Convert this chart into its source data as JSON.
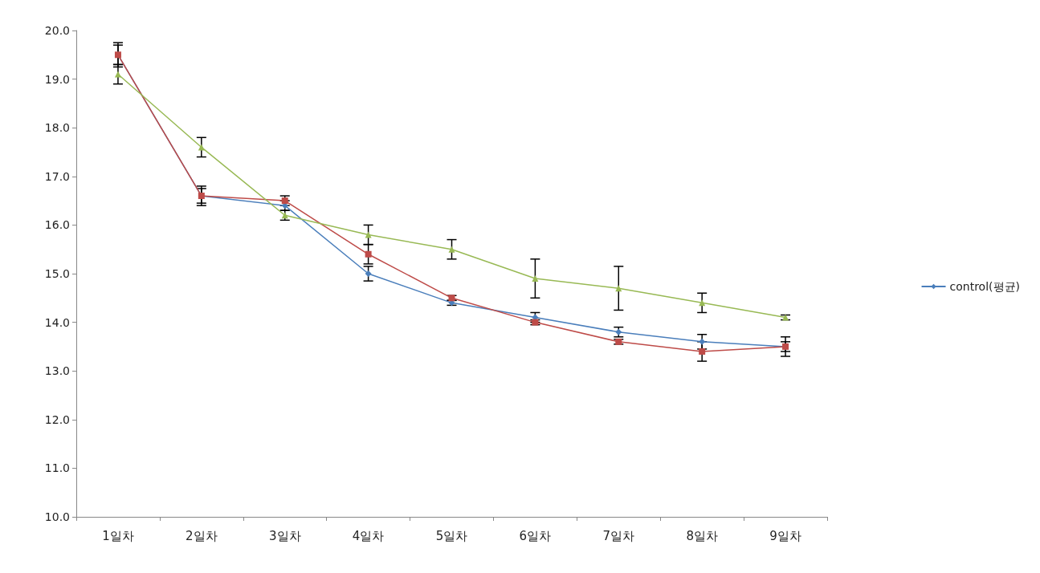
{
  "chart_data": {
    "type": "line",
    "categories": [
      "1일차",
      "2일차",
      "3일차",
      "4일차",
      "5일차",
      "6일차",
      "7일차",
      "8일차",
      "9일차"
    ],
    "ylim": [
      10,
      20
    ],
    "yticks": [
      {
        "value": 10,
        "label": "10.0"
      },
      {
        "value": 11,
        "label": "11.0"
      },
      {
        "value": 12,
        "label": "12.0"
      },
      {
        "value": 13,
        "label": "13.0"
      },
      {
        "value": 14,
        "label": "14.0"
      },
      {
        "value": 15,
        "label": "15.0"
      },
      {
        "value": 16,
        "label": "16.0"
      },
      {
        "value": 17,
        "label": "17.0"
      },
      {
        "value": 18,
        "label": "18.0"
      },
      {
        "value": 19,
        "label": "19.0"
      },
      {
        "value": 20,
        "label": "20.0"
      }
    ],
    "grid": false,
    "legend": "right",
    "line_style": "solid",
    "series": [
      {
        "name": "control(평균)",
        "color": "#4a7ebb",
        "marker": "diamond",
        "values": [
          19.5,
          16.6,
          16.4,
          15.0,
          14.4,
          14.1,
          13.8,
          13.6,
          13.5
        ],
        "errors": [
          0.2,
          0.2,
          0.1,
          0.15,
          0.05,
          0.1,
          0.1,
          0.15,
          0.1
        ]
      },
      {
        "color": "#be4b48",
        "marker": "square",
        "values": [
          19.5,
          16.6,
          16.5,
          15.4,
          14.5,
          14.0,
          13.6,
          13.4,
          13.5
        ],
        "errors": [
          0.25,
          0.15,
          0.1,
          0.2,
          0.05,
          0.05,
          0.05,
          0.2,
          0.2
        ]
      },
      {
        "color": "#98b954",
        "marker": "triangle",
        "values": [
          19.1,
          17.6,
          16.2,
          15.8,
          15.5,
          14.9,
          14.7,
          14.4,
          14.1
        ],
        "errors": [
          0.2,
          0.2,
          0.1,
          0.2,
          0.2,
          0.4,
          0.45,
          0.2,
          0.05
        ]
      }
    ]
  }
}
